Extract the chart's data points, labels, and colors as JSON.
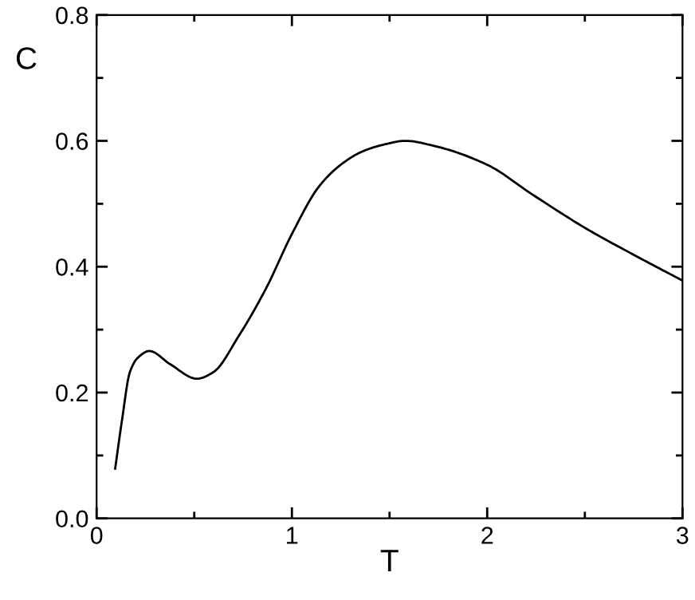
{
  "chart_data": {
    "type": "line",
    "xlabel": "T",
    "ylabel": "C",
    "x": [
      0.095,
      0.13,
      0.17,
      0.21,
      0.27,
      0.377,
      0.514,
      0.596,
      0.73,
      0.87,
      1.0,
      1.14,
      1.25,
      1.36,
      1.47,
      1.58,
      1.74,
      2.0,
      2.23,
      2.51,
      2.78,
      3.0
    ],
    "series": [
      {
        "color": "#000000",
        "values": [
          0.079,
          0.156,
          0.232,
          0.255,
          0.266,
          0.245,
          0.222,
          0.232,
          0.291,
          0.367,
          0.452,
          0.528,
          0.562,
          0.583,
          0.594,
          0.6,
          0.591,
          0.562,
          0.515,
          0.46,
          0.414,
          0.378
        ]
      }
    ],
    "xlim": [
      0,
      3
    ],
    "ylim": [
      0,
      0.8
    ],
    "xticks": [
      "0",
      {
        "value": 0.5,
        "label": null
      },
      1,
      {
        "value": 1.5,
        "label": null
      },
      2,
      {
        "value": 2.5,
        "label": null
      },
      3
    ],
    "yticks": [
      {
        "value": 0,
        "label": "0.0"
      },
      {
        "value": 0.1,
        "label": null
      },
      0.2,
      {
        "value": 0.3,
        "label": null
      },
      0.4,
      {
        "value": 0.5,
        "label": null
      },
      0.6,
      {
        "value": 0.7,
        "label": null
      },
      0.8
    ],
    "marker": "none",
    "line_style": "solid"
  }
}
